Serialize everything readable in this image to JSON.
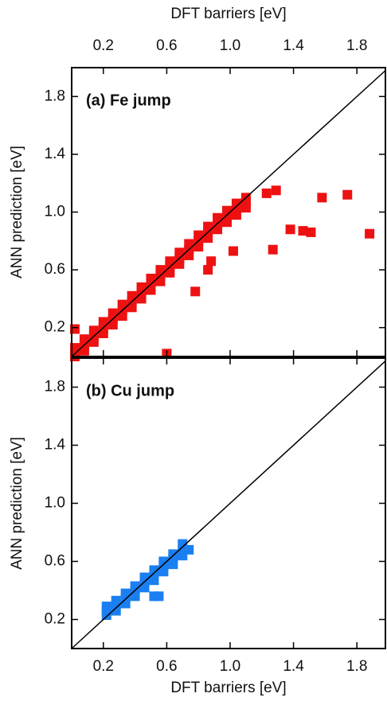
{
  "chart_data": [
    {
      "type": "scatter",
      "title": "(a) Fe jump",
      "x_label": "DFT barriers [eV]",
      "y_label": "ANN prediction [eV]",
      "color": "#ee1111",
      "x_axis_position": "top",
      "xlim": [
        0,
        1.98
      ],
      "ylim": [
        0,
        2.0
      ],
      "xticks": [
        0.2,
        0.6,
        {
          "value": 1,
          "label": "1.0"
        },
        1.4,
        1.8
      ],
      "yticks": [
        0.2,
        0.6,
        {
          "value": 1,
          "label": "1.0"
        },
        1.4,
        1.8
      ],
      "x": [
        0.02,
        0.02,
        0.02,
        0.08,
        0.08,
        0.08,
        0.14,
        0.14,
        0.14,
        0.2,
        0.2,
        0.2,
        0.26,
        0.26,
        0.26,
        0.32,
        0.32,
        0.32,
        0.38,
        0.38,
        0.38,
        0.44,
        0.44,
        0.44,
        0.5,
        0.5,
        0.5,
        0.56,
        0.56,
        0.56,
        0.62,
        0.62,
        0.62,
        0.68,
        0.68,
        0.68,
        0.74,
        0.74,
        0.74,
        0.8,
        0.8,
        0.8,
        0.86,
        0.86,
        0.86,
        0.92,
        0.92,
        0.92,
        0.98,
        0.98,
        0.98,
        1.04,
        1.04,
        1.04,
        1.1,
        1.1,
        1.1,
        1.23,
        1.29,
        1.58,
        1.74,
        1.38,
        1.46,
        1.51,
        1.88,
        1.27,
        1.02,
        0.88,
        0.86,
        0.78,
        0.6,
        0.02
      ],
      "y": [
        0.0,
        0.02,
        0.06,
        0.04,
        0.08,
        0.12,
        0.1,
        0.14,
        0.18,
        0.16,
        0.2,
        0.24,
        0.22,
        0.26,
        0.3,
        0.28,
        0.32,
        0.36,
        0.34,
        0.38,
        0.42,
        0.4,
        0.44,
        0.48,
        0.46,
        0.5,
        0.54,
        0.52,
        0.56,
        0.6,
        0.58,
        0.62,
        0.66,
        0.64,
        0.68,
        0.72,
        0.7,
        0.74,
        0.78,
        0.76,
        0.8,
        0.84,
        0.82,
        0.86,
        0.9,
        0.88,
        0.92,
        0.96,
        0.93,
        0.97,
        1.01,
        0.98,
        1.02,
        1.06,
        1.03,
        1.07,
        1.1,
        1.13,
        1.15,
        1.1,
        1.12,
        0.88,
        0.87,
        0.86,
        0.85,
        0.74,
        0.73,
        0.66,
        0.6,
        0.45,
        0.02,
        0.19
      ]
    },
    {
      "type": "scatter",
      "title": "(b) Cu jump",
      "x_label": "DFT barriers [eV]",
      "y_label": "ANN prediction [eV]",
      "color": "#1a7ff0",
      "x_axis_position": "bottom",
      "xlim": [
        0,
        1.98
      ],
      "ylim": [
        0,
        2.0
      ],
      "xticks": [
        0.2,
        0.6,
        {
          "value": 1,
          "label": "1.0"
        },
        1.4,
        1.8
      ],
      "yticks": [
        0.2,
        0.6,
        {
          "value": 1,
          "label": "1.0"
        },
        1.4,
        1.8
      ],
      "x": [
        0.22,
        0.22,
        0.22,
        0.28,
        0.28,
        0.28,
        0.34,
        0.34,
        0.34,
        0.4,
        0.4,
        0.4,
        0.46,
        0.46,
        0.46,
        0.52,
        0.52,
        0.52,
        0.58,
        0.58,
        0.58,
        0.64,
        0.64,
        0.64,
        0.7,
        0.7,
        0.7,
        0.52,
        0.55,
        0.74
      ],
      "y": [
        0.23,
        0.26,
        0.29,
        0.26,
        0.3,
        0.33,
        0.31,
        0.35,
        0.38,
        0.36,
        0.4,
        0.43,
        0.42,
        0.46,
        0.49,
        0.47,
        0.51,
        0.54,
        0.53,
        0.57,
        0.6,
        0.58,
        0.62,
        0.65,
        0.64,
        0.68,
        0.72,
        0.36,
        0.36,
        0.68
      ]
    }
  ]
}
